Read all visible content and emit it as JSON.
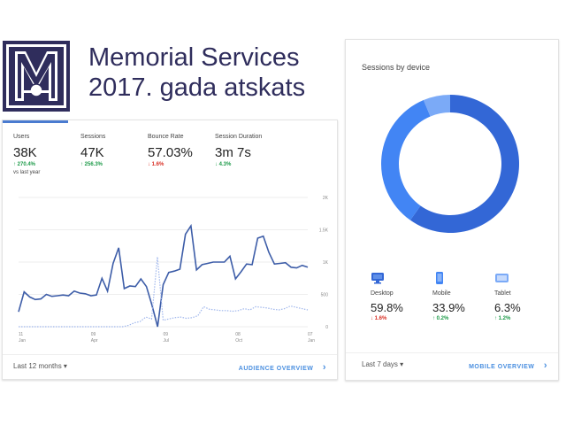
{
  "header": {
    "title_line1": "Memorial Services",
    "title_line2": "2017. gada atskats",
    "brand_color": "#2f2d5c"
  },
  "audience_card": {
    "metrics": [
      {
        "label": "Users",
        "value": "38K",
        "change": "↑ 270.4%",
        "trend": "up",
        "sub": "vs last year"
      },
      {
        "label": "Sessions",
        "value": "47K",
        "change": "↑ 256.3%",
        "trend": "up"
      },
      {
        "label": "Bounce Rate",
        "value": "57.03%",
        "change": "↓ 1.6%",
        "trend": "down"
      },
      {
        "label": "Session Duration",
        "value": "3m 7s",
        "change": "↓ 4.3%",
        "trend": "up"
      }
    ],
    "date_range": "Last 12 months ▾",
    "overview_link": "AUDIENCE OVERVIEW",
    "chevron": "›"
  },
  "chart_data": [
    {
      "type": "line",
      "title": "",
      "x": [
        "11 Jan",
        "09 Apr",
        "09 Jul",
        "08 Oct",
        "07 Jan"
      ],
      "y_ticks": [
        "2K",
        "1.5K",
        "1K",
        "500",
        "0"
      ],
      "ylim": [
        0,
        2000
      ],
      "grid": true,
      "series": [
        {
          "name": "Users (this period)",
          "style": "solid",
          "values": [
            230,
            540,
            460,
            420,
            430,
            500,
            470,
            480,
            490,
            480,
            550,
            520,
            510,
            480,
            490,
            750,
            550,
            980,
            1220,
            590,
            630,
            620,
            740,
            620,
            330,
            0,
            650,
            840,
            860,
            890,
            1430,
            1560,
            880,
            960,
            980,
            1000,
            1000,
            1000,
            1090,
            740,
            850,
            970,
            960,
            1370,
            1400,
            1150,
            970,
            980,
            990,
            920,
            910,
            950,
            920
          ]
        },
        {
          "name": "Users (previous period)",
          "style": "dotted",
          "values": [
            0,
            0,
            0,
            0,
            0,
            0,
            0,
            0,
            0,
            0,
            0,
            0,
            0,
            0,
            0,
            0,
            0,
            0,
            0,
            20,
            60,
            80,
            150,
            120,
            1080,
            100,
            120,
            140,
            150,
            130,
            140,
            170,
            310,
            270,
            260,
            250,
            250,
            240,
            250,
            280,
            260,
            310,
            300,
            290,
            270,
            260,
            280,
            320,
            300,
            280,
            260
          ]
        }
      ]
    },
    {
      "type": "pie",
      "title": "Sessions by device",
      "categories": [
        "Desktop",
        "Mobile",
        "Tablet"
      ],
      "values": [
        59.8,
        33.9,
        6.3
      ],
      "colors": [
        "#3367d6",
        "#4285f4",
        "#7baaf7"
      ]
    }
  ],
  "device_card": {
    "title": "Sessions by device",
    "devices": [
      {
        "name": "Desktop",
        "icon": "desktop-icon",
        "value": "59.8%",
        "change": "↓ 1.6%",
        "trend": "down"
      },
      {
        "name": "Mobile",
        "icon": "mobile-icon",
        "value": "33.9%",
        "change": "↑ 0.2%",
        "trend": "up"
      },
      {
        "name": "Tablet",
        "icon": "tablet-icon",
        "value": "6.3%",
        "change": "↑ 1.2%",
        "trend": "up"
      }
    ],
    "date_range": "Last 7 days ▾",
    "overview_link": "MOBILE OVERVIEW",
    "chevron": "›"
  }
}
